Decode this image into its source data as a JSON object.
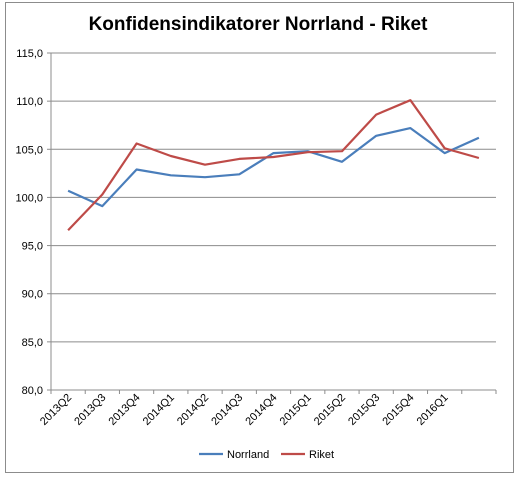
{
  "chart_data": {
    "type": "line",
    "title": "Konfidensindikatorer Norrland - Riket",
    "xlabel": "",
    "ylabel": "",
    "categories": [
      "2013Q2",
      "2013Q3",
      "2013Q4",
      "2014Q1",
      "2014Q2",
      "2014Q3",
      "2014Q4",
      "2015Q1",
      "2015Q2",
      "2015Q3",
      "2015Q4",
      "2016Q1",
      ""
    ],
    "ylim": [
      80,
      115
    ],
    "yticks": [
      "80,0",
      "85,0",
      "90,0",
      "95,0",
      "100,0",
      "105,0",
      "110,0",
      "115,0"
    ],
    "grid": true,
    "legend_position": "bottom",
    "series": [
      {
        "name": "Norrland",
        "color": "#4a7ebb",
        "values": [
          100.7,
          99.1,
          102.9,
          102.3,
          102.1,
          102.4,
          104.6,
          104.8,
          103.7,
          106.4,
          107.2,
          104.6,
          106.2
        ]
      },
      {
        "name": "Riket",
        "color": "#be4b48",
        "values": [
          96.6,
          100.3,
          105.6,
          104.3,
          103.4,
          104.0,
          104.2,
          104.7,
          104.8,
          108.6,
          110.1,
          105.1,
          104.1
        ]
      }
    ]
  }
}
